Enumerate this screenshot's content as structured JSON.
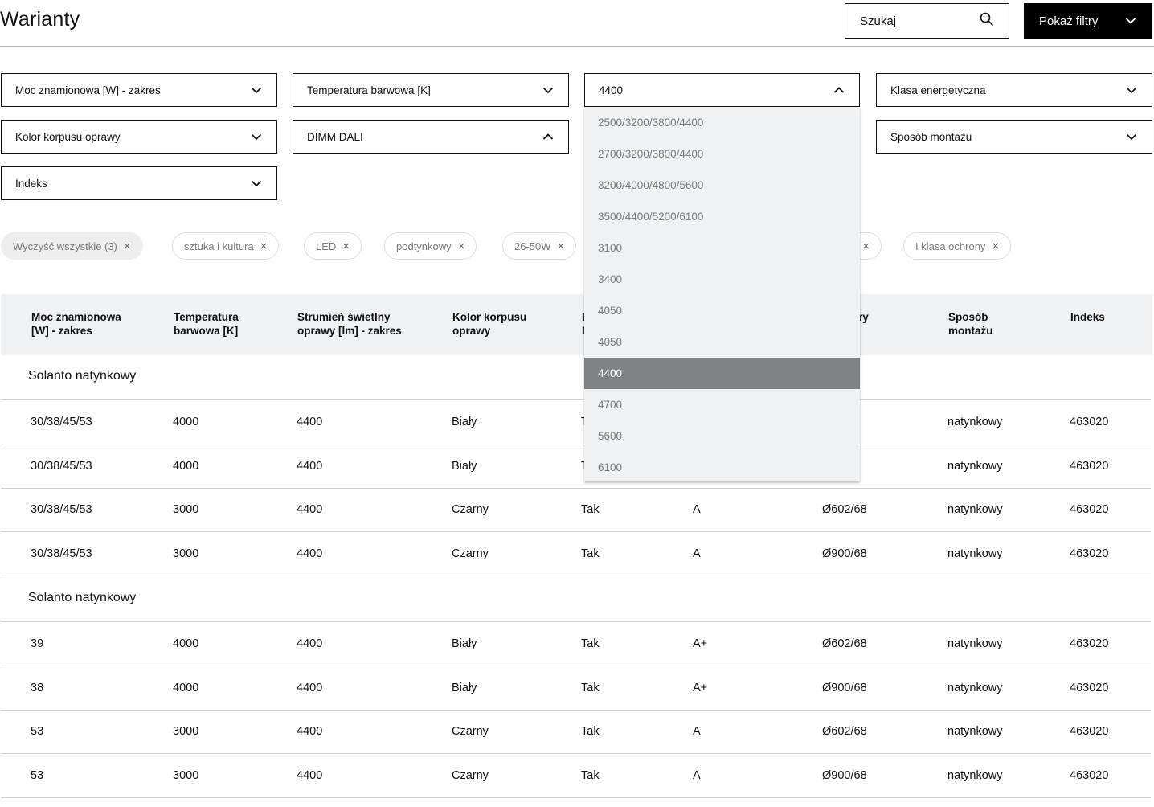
{
  "header": {
    "title": "Warianty",
    "search_label": "Szukaj",
    "filters_button": "Pokaż filtry"
  },
  "filters": {
    "row1": [
      "Moc znamionowa [W] - zakres",
      "Temperatura barwowa [K]",
      "4400",
      "Klasa energetyczna"
    ],
    "row2": [
      "Kolor korpusu oprawy",
      "DIMM DALI",
      "Sposób montażu"
    ],
    "row3": [
      "Indeks"
    ]
  },
  "dropdown": {
    "options": [
      "2500/3200/3800/4400",
      "2700/3200/3800/4400",
      "3200/4000/4800/5600",
      "3500/4400/5200/6100",
      "3100",
      "3400",
      "4050",
      "4050",
      "4400",
      "4700",
      "5600",
      "6100"
    ],
    "selected_index": 8
  },
  "chips": [
    "Wyczyść wszystkie (3)",
    "sztuka i kultura",
    "LED",
    "podtynkowy",
    "26-50W",
    "",
    "I klasa ochrony"
  ],
  "table": {
    "headers": [
      "Moc znamionowa\n[W] - zakres",
      "Temperatura\nbarwowa [K]",
      "Strumień świetlny\noprawy [lm] -  zakres",
      "Kolor korpusu\noprawy",
      "D\nD",
      "",
      "ry",
      "Sposób\nmontażu",
      "Indeks"
    ],
    "groups": [
      {
        "title": "Solanto natynkowy",
        "rows": [
          [
            "30/38/45/53",
            "4000",
            "4400",
            "Biały",
            "T",
            "",
            "68",
            "natynkowy",
            "463020"
          ],
          [
            "30/38/45/53",
            "4000",
            "4400",
            "Biały",
            "T",
            "",
            "68",
            "natynkowy",
            "463020"
          ],
          [
            "30/38/45/53",
            "3000",
            "4400",
            "Czarny",
            "Tak",
            "A",
            "Ø602/68",
            "natynkowy",
            "463020"
          ],
          [
            "30/38/45/53",
            "3000",
            "4400",
            "Czarny",
            "Tak",
            "A",
            "Ø900/68",
            "natynkowy",
            "463020"
          ]
        ]
      },
      {
        "title": "Solanto natynkowy",
        "rows": [
          [
            "39",
            "4000",
            "4400",
            "Biały",
            "Tak",
            "A+",
            "Ø602/68",
            "natynkowy",
            "463020"
          ],
          [
            "38",
            "4000",
            "4400",
            "Biały",
            "Tak",
            "A+",
            "Ø900/68",
            "natynkowy",
            "463020"
          ],
          [
            "53",
            "3000",
            "4400",
            "Czarny",
            "Tak",
            "A",
            "Ø602/68",
            "natynkowy",
            "463020"
          ],
          [
            "53",
            "3000",
            "4400",
            "Czarny",
            "Tak",
            "A",
            "Ø900/68",
            "natynkowy",
            "463020"
          ]
        ]
      }
    ]
  }
}
